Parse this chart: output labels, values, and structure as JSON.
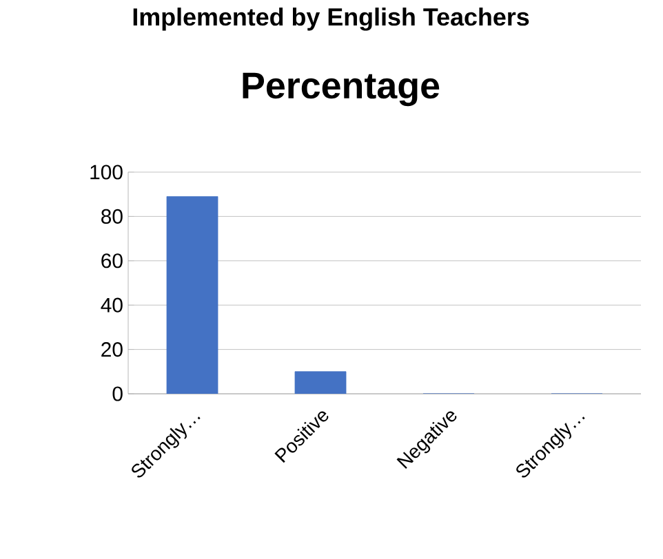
{
  "chart_data": {
    "type": "bar",
    "title": "Percentage",
    "annotations": [
      "Implemented by English Teachers"
    ],
    "categories": [
      "Strongly…",
      "Positive",
      "Negative",
      "Strongly…"
    ],
    "values": [
      89,
      10,
      0,
      0
    ],
    "color": "#4472c4",
    "ylim": [
      0,
      100
    ],
    "yticks": [
      0,
      20,
      40,
      60,
      80,
      100
    ],
    "grid": "y"
  }
}
